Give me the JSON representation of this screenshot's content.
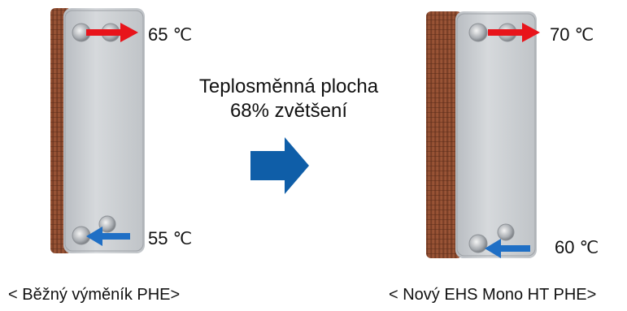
{
  "center_label": {
    "line1": "Teplosměnná plocha",
    "line2": "68% zvětšení"
  },
  "left_phe": {
    "outlet_temp_value": "65",
    "inlet_temp_value": "55",
    "unit": "℃",
    "caption": "< Běžný výměník PHE>"
  },
  "right_phe": {
    "outlet_temp_value": "70",
    "inlet_temp_value": "60",
    "unit": "℃",
    "caption": "< Nový EHS Mono HT PHE>"
  },
  "colors": {
    "hot_arrow": "#e8141b",
    "cold_arrow": "#1f6fc5",
    "transition_arrow": "#0f5ea8",
    "plate_face": "#c9ccd0",
    "copper_edge": "#8a4a2e"
  }
}
